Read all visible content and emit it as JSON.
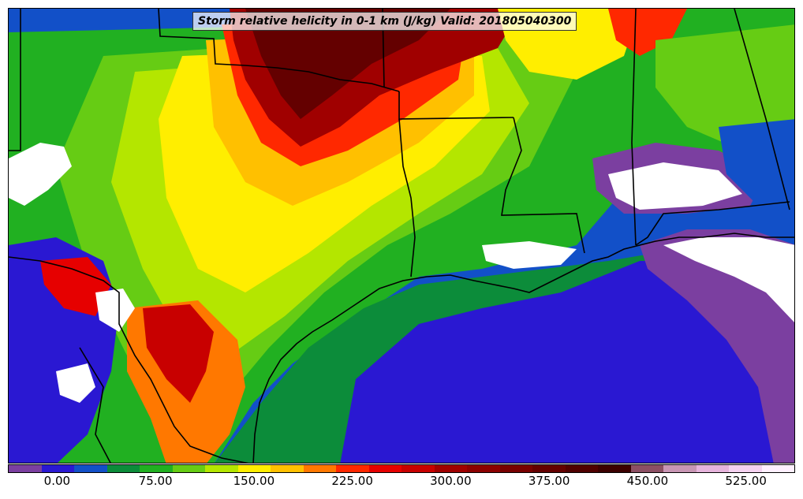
{
  "title": "Storm relative helicity in 0-1 km (J/kg) Valid: 201805040300",
  "colorbar": {
    "min": -37.5,
    "max": 562.5,
    "step": 25,
    "colors": [
      "#7b3fa0",
      "#2a18d2",
      "#1250c8",
      "#0c8c3a",
      "#21b021",
      "#66cc14",
      "#b4e600",
      "#ffee00",
      "#ffc000",
      "#ff7800",
      "#ff2800",
      "#e60000",
      "#c80000",
      "#a00000",
      "#8c0000",
      "#780000",
      "#640000",
      "#500000",
      "#3c0000",
      "#8c5064",
      "#c896b4",
      "#e6b4dc",
      "#f5d2f0",
      "#fff0ff"
    ],
    "ticks": [
      "0.00",
      "75.00",
      "150.00",
      "225.00",
      "300.00",
      "375.00",
      "450.00",
      "525.00"
    ],
    "tick_values": [
      0,
      75,
      150,
      225,
      300,
      375,
      450,
      525
    ]
  },
  "map": {
    "features": [
      "state-boundaries",
      "coastline",
      "gulf-of-mexico"
    ]
  }
}
